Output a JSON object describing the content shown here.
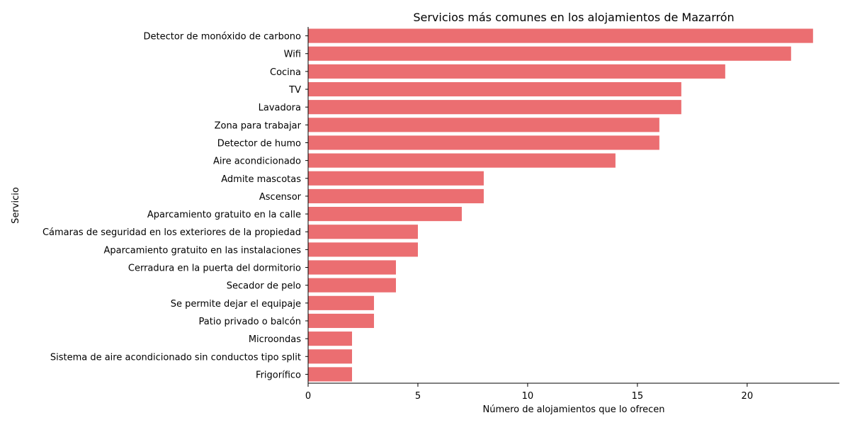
{
  "chart_data": {
    "type": "bar",
    "orientation": "horizontal",
    "title": "Servicios más comunes en los alojamientos de Mazarrón",
    "xlabel": "Número de alojamientos que lo ofrecen",
    "ylabel": "Servicio",
    "xlim": [
      0,
      24.2
    ],
    "xticks": [
      0,
      5,
      10,
      15,
      20
    ],
    "grid": false,
    "bar_color": "#eb6e71",
    "categories": [
      "Detector de monóxido de carbono",
      "Wifi",
      "Cocina",
      "TV",
      "Lavadora",
      "Zona para trabajar",
      "Detector de humo",
      "Aire acondicionado",
      "Admite mascotas",
      "Ascensor",
      "Aparcamiento gratuito en la calle",
      "Cámaras de seguridad en los exteriores de la propiedad",
      "Aparcamiento gratuito en las instalaciones",
      "Cerradura en la puerta del dormitorio",
      "Secador de pelo",
      "Se permite dejar el equipaje",
      "Patio privado o balcón",
      "Microondas",
      "Sistema de aire acondicionado sin conductos tipo split",
      "Frigorífico"
    ],
    "values": [
      23,
      22,
      19,
      17,
      17,
      16,
      16,
      14,
      8,
      8,
      7,
      5,
      5,
      4,
      4,
      3,
      3,
      2,
      2,
      2
    ]
  }
}
